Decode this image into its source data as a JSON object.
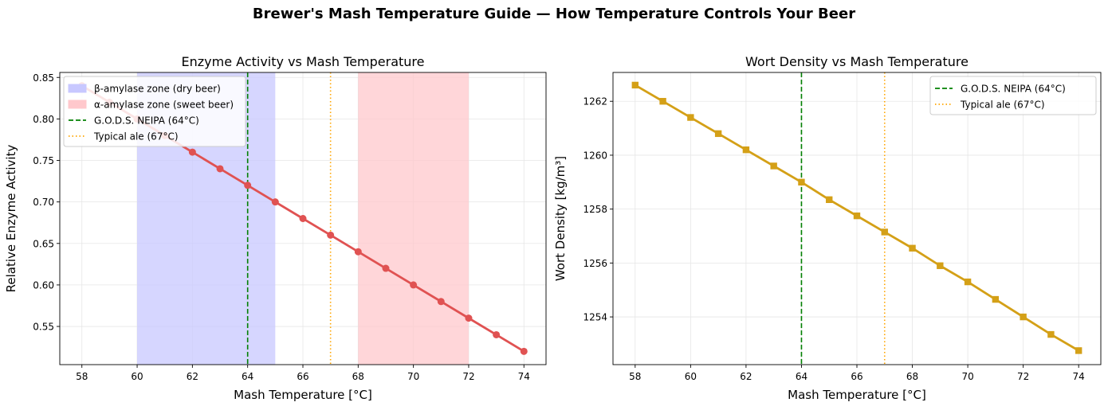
{
  "suptitle": "Brewer's Mash Temperature Guide — How Temperature Controls Your Beer",
  "colors": {
    "activity_line": "#e05252",
    "density_line": "#d4a017",
    "beta_zone": "#c8c8ff",
    "alpha_zone": "#ffc8cc",
    "neipa_line": "#008000",
    "ale_line": "#ffa500",
    "grid": "#e6e6e6"
  },
  "chart_data": [
    {
      "type": "line",
      "title": "Enzyme Activity vs Mash Temperature",
      "xlabel": "Mash Temperature [°C]",
      "ylabel": "Relative Enzyme Activity",
      "xlim": [
        57.2,
        74.8
      ],
      "ylim": [
        0.504,
        0.856
      ],
      "xticks": [
        58,
        60,
        62,
        64,
        66,
        68,
        70,
        72,
        74
      ],
      "yticks": [
        0.55,
        0.6,
        0.65,
        0.7,
        0.75,
        0.8,
        0.85
      ],
      "ytick_labels": [
        "0.55",
        "0.60",
        "0.65",
        "0.70",
        "0.75",
        "0.80",
        "0.85"
      ],
      "grid": true,
      "marker": "circle",
      "series": [
        {
          "x": [
            58,
            59,
            60,
            61,
            62,
            63,
            64,
            65,
            66,
            67,
            68,
            69,
            70,
            71,
            72,
            73,
            74
          ],
          "values": [
            0.84,
            0.82,
            0.8,
            0.78,
            0.76,
            0.74,
            0.72,
            0.7,
            0.68,
            0.66,
            0.64,
            0.62,
            0.6,
            0.58,
            0.56,
            0.54,
            0.52
          ]
        }
      ],
      "spans": [
        {
          "name": "β-amylase zone (dry beer)",
          "from": 60,
          "to": 65,
          "color": "#c8c8ff"
        },
        {
          "name": "α-amylase zone (sweet beer)",
          "from": 68,
          "to": 72,
          "color": "#ffc8cc"
        }
      ],
      "vlines": [
        {
          "name": "G.O.D.S. NEIPA (64°C)",
          "x": 64,
          "style": "dashed",
          "color": "#008000"
        },
        {
          "name": "Typical ale (67°C)",
          "x": 67,
          "style": "dotted",
          "color": "#ffa500"
        }
      ],
      "legend": "top-left"
    },
    {
      "type": "line",
      "title": "Wort Density vs Mash Temperature",
      "xlabel": "Mash Temperature [°C]",
      "ylabel": "Wort Density [kg/m³]",
      "xlim": [
        57.2,
        74.8
      ],
      "ylim": [
        1252.23,
        1263.07
      ],
      "xticks": [
        58,
        60,
        62,
        64,
        66,
        68,
        70,
        72,
        74
      ],
      "yticks": [
        1254,
        1256,
        1258,
        1260,
        1262
      ],
      "ytick_labels": [
        "1254",
        "1256",
        "1258",
        "1260",
        "1262"
      ],
      "grid": true,
      "marker": "square",
      "series": [
        {
          "x": [
            58,
            59,
            60,
            61,
            62,
            63,
            64,
            65,
            66,
            67,
            68,
            69,
            70,
            71,
            72,
            73,
            74
          ],
          "values": [
            1262.6,
            1262.0,
            1261.4,
            1260.8,
            1260.2,
            1259.6,
            1259.0,
            1258.35,
            1257.75,
            1257.15,
            1256.55,
            1255.9,
            1255.3,
            1254.65,
            1254.0,
            1253.35,
            1252.75
          ]
        }
      ],
      "spans": [],
      "vlines": [
        {
          "name": "G.O.D.S. NEIPA (64°C)",
          "x": 64,
          "style": "dashed",
          "color": "#008000"
        },
        {
          "name": "Typical ale (67°C)",
          "x": 67,
          "style": "dotted",
          "color": "#ffa500"
        }
      ],
      "legend": "top-right"
    }
  ]
}
